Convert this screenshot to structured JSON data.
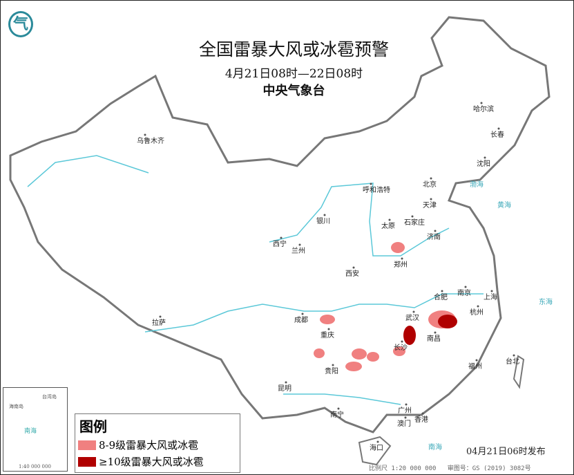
{
  "header": {
    "title": "全国雷暴大风或冰雹预警",
    "period": "4月21日08时—22日08时",
    "issuer": "中央气象台"
  },
  "logo": {
    "icon": "cma-logo-icon",
    "color": "#2a8a9a"
  },
  "cities": [
    "乌鲁木齐",
    "哈尔滨",
    "长春",
    "沈阳",
    "呼和浩特",
    "北京",
    "天津",
    "石家庄",
    "太原",
    "银川",
    "济南",
    "西宁",
    "兰州",
    "郑州",
    "西安",
    "合肥",
    "南京",
    "上海",
    "武汉",
    "杭州",
    "成都",
    "重庆",
    "长沙",
    "南昌",
    "拉萨",
    "贵阳",
    "福州",
    "台北",
    "昆明",
    "南宁",
    "广州",
    "香港",
    "澳门",
    "海口"
  ],
  "sea_labels": [
    "渤海",
    "黄海",
    "东海",
    "南海"
  ],
  "inset": {
    "labels": [
      "台湾岛",
      "海南岛",
      "南海",
      "1:40 000 000"
    ]
  },
  "legend": {
    "title": "图例",
    "items": [
      {
        "label": "8-9级雷暴大风或冰雹",
        "color": "#f08080"
      },
      {
        "label": "≥10级雷暴大风或冰雹",
        "color": "#b00000"
      }
    ]
  },
  "issue_time": "04月21日06时发布",
  "footer": {
    "scale": "比例尺 1:20 000 000",
    "review_no": "审图号：GS (2019) 3082号"
  },
  "colors": {
    "border": "#888888",
    "river": "#5bc8d8",
    "level_8_9": "#f08080",
    "level_10": "#b00000"
  }
}
